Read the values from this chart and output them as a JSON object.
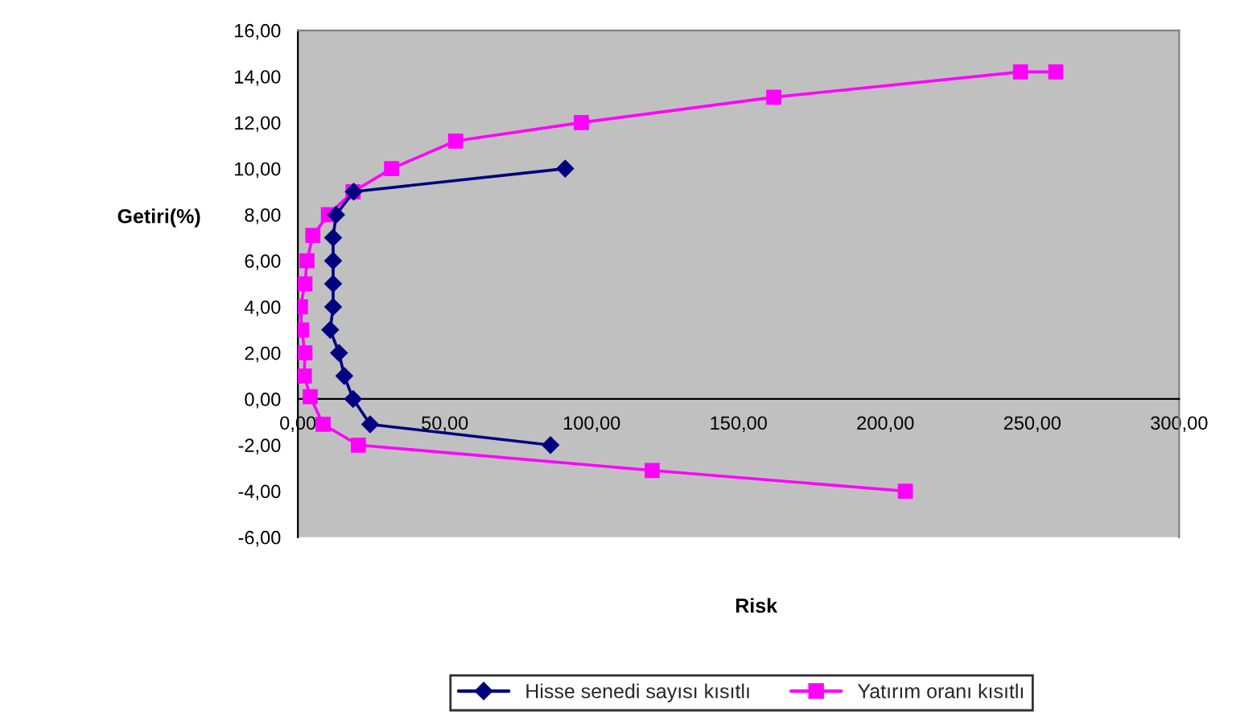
{
  "chart_data": {
    "type": "line",
    "xlabel": "Risk",
    "ylabel": "Getiri(%)",
    "series": [
      {
        "name": "Hisse senedi sayısı kısıtlı",
        "color": "#000080",
        "marker": "diamond",
        "x": [
          86,
          24.6,
          18.8,
          15.8,
          14,
          11,
          12,
          12,
          12,
          12,
          13,
          19,
          91
        ],
        "values": [
          -2,
          -1.1,
          0,
          1,
          2,
          3,
          4,
          5,
          6,
          7,
          8,
          9,
          10
        ]
      },
      {
        "name": "Yatırım oranı kısıtlı",
        "color": "#ff00ff",
        "marker": "square",
        "x": [
          206.8,
          120.6,
          20.6,
          8.6,
          4.2,
          2.2,
          2.4,
          1.3,
          0.9,
          2.4,
          3.1,
          5.1,
          10.4,
          18.8,
          31.9,
          53.7,
          96.5,
          162,
          246,
          258
        ],
        "values": [
          -4,
          -3.1,
          -2,
          -1.1,
          0.1,
          1,
          2,
          3,
          4,
          5,
          6,
          7.1,
          8,
          9,
          10,
          11.2,
          12,
          13.1,
          14.2,
          14.2
        ]
      }
    ],
    "xlim": [
      0,
      300
    ],
    "xticks": [
      {
        "value": 0,
        "label": "0,00"
      },
      {
        "value": 50,
        "label": "50,00"
      },
      {
        "value": 100,
        "label": "100,00"
      },
      {
        "value": 150,
        "label": "150,00"
      },
      {
        "value": 200,
        "label": "200,00"
      },
      {
        "value": 250,
        "label": "250,00"
      },
      {
        "value": 300,
        "label": "300,00"
      }
    ],
    "ylim": [
      -6,
      16
    ],
    "yticks": [
      {
        "value": -6,
        "label": "-6,00"
      },
      {
        "value": -4,
        "label": "-4,00"
      },
      {
        "value": -2,
        "label": "-2,00"
      },
      {
        "value": 0,
        "label": "0,00"
      },
      {
        "value": 2,
        "label": "2,00"
      },
      {
        "value": 4,
        "label": "4,00"
      },
      {
        "value": 6,
        "label": "6,00"
      },
      {
        "value": 8,
        "label": "8,00"
      },
      {
        "value": 10,
        "label": "10,00"
      },
      {
        "value": 12,
        "label": "12,00"
      },
      {
        "value": 14,
        "label": "14,00"
      },
      {
        "value": 16,
        "label": "16,00"
      }
    ],
    "grid": false,
    "legend": "bottom",
    "line_style": "solid"
  }
}
